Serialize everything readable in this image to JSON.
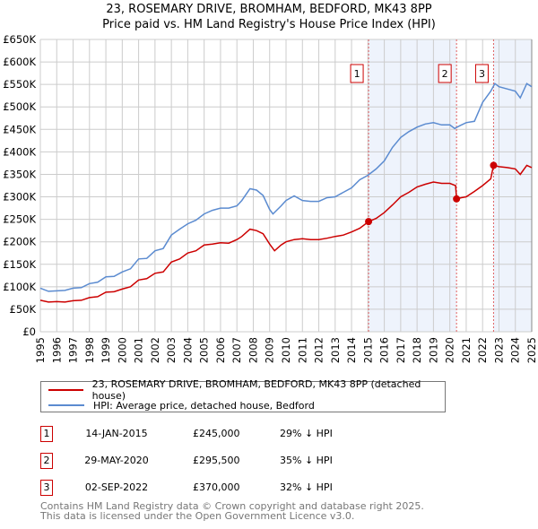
{
  "chart_data": {
    "type": "line",
    "title": "23, ROSEMARY DRIVE, BROMHAM, BEDFORD, MK43 8PP",
    "subtitle": "Price paid vs. HM Land Registry's House Price Index (HPI)",
    "xlabel": "",
    "ylabel": "",
    "xlim": [
      1995,
      2025
    ],
    "ylim": [
      0,
      650000
    ],
    "grid": true,
    "y_ticks": [
      0,
      50000,
      100000,
      150000,
      200000,
      250000,
      300000,
      350000,
      400000,
      450000,
      500000,
      550000,
      600000,
      650000
    ],
    "y_tick_labels": [
      "£0",
      "£50K",
      "£100K",
      "£150K",
      "£200K",
      "£250K",
      "£300K",
      "£350K",
      "£400K",
      "£450K",
      "£500K",
      "£550K",
      "£600K",
      "£650K"
    ],
    "x_tick_labels": [
      "1995",
      "1996",
      "1997",
      "1998",
      "1999",
      "2000",
      "2001",
      "2002",
      "2003",
      "2004",
      "2005",
      "2006",
      "2007",
      "2008",
      "2009",
      "2010",
      "2011",
      "2012",
      "2013",
      "2014",
      "2015",
      "2016",
      "2017",
      "2018",
      "2019",
      "2020",
      "2021",
      "2022",
      "2023",
      "2024",
      "2025"
    ],
    "legend_placement": "below",
    "series": [
      {
        "name": "23, ROSEMARY DRIVE, BROMHAM, BEDFORD, MK43 8PP (detached house)",
        "color": "#cc0000",
        "x": [
          1995,
          1995.5,
          1996,
          1996.5,
          1997,
          1997.5,
          1998,
          1998.5,
          1999,
          1999.5,
          2000,
          2000.5,
          2001,
          2001.5,
          2002,
          2002.5,
          2003,
          2003.5,
          2004,
          2004.5,
          2005,
          2005.5,
          2006,
          2006.5,
          2007,
          2007.3,
          2007.8,
          2008.2,
          2008.6,
          2009,
          2009.3,
          2009.7,
          2010,
          2010.5,
          2011,
          2011.5,
          2012,
          2012.5,
          2013,
          2013.5,
          2014,
          2014.5,
          2015.04,
          2015.5,
          2016,
          2016.5,
          2017,
          2017.5,
          2018,
          2018.5,
          2019,
          2019.5,
          2020,
          2020.35,
          2020.41,
          2020.7,
          2021,
          2021.5,
          2022,
          2022.5,
          2022.67,
          2023,
          2023.5,
          2024,
          2024.3,
          2024.7,
          2025
        ],
        "y": [
          70000,
          66000,
          67000,
          66000,
          69000,
          70000,
          76000,
          78000,
          88000,
          89000,
          95000,
          100000,
          115000,
          118000,
          130000,
          133000,
          155000,
          162000,
          175000,
          180000,
          193000,
          195000,
          198000,
          197000,
          205000,
          212000,
          228000,
          225000,
          218000,
          195000,
          180000,
          193000,
          200000,
          205000,
          207000,
          205000,
          205000,
          208000,
          212000,
          215000,
          222000,
          230000,
          245000,
          252000,
          265000,
          282000,
          300000,
          310000,
          322000,
          328000,
          333000,
          330000,
          330000,
          325000,
          295500,
          298000,
          300000,
          312000,
          325000,
          340000,
          370000,
          367000,
          365000,
          362000,
          350000,
          370000,
          365000
        ]
      },
      {
        "name": "HPI: Average price, detached house, Bedford",
        "color": "#5b8bd0",
        "x": [
          1995,
          1995.5,
          1996,
          1996.5,
          1997,
          1997.5,
          1998,
          1998.5,
          1999,
          1999.5,
          2000,
          2000.5,
          2001,
          2001.5,
          2002,
          2002.5,
          2003,
          2003.5,
          2004,
          2004.5,
          2005,
          2005.5,
          2006,
          2006.5,
          2007,
          2007.3,
          2007.8,
          2008.2,
          2008.6,
          2009,
          2009.2,
          2009.7,
          2010,
          2010.5,
          2011,
          2011.5,
          2012,
          2012.5,
          2013,
          2013.5,
          2014,
          2014.5,
          2015,
          2015.5,
          2016,
          2016.5,
          2017,
          2017.5,
          2018,
          2018.5,
          2019,
          2019.5,
          2020,
          2020.3,
          2020.6,
          2021,
          2021.5,
          2022,
          2022.5,
          2022.75,
          2023,
          2023.5,
          2024,
          2024.3,
          2024.7,
          2025
        ],
        "y": [
          97000,
          90000,
          91000,
          92000,
          97000,
          98000,
          107000,
          110000,
          122000,
          123000,
          133000,
          140000,
          162000,
          163000,
          180000,
          185000,
          215000,
          228000,
          240000,
          248000,
          262000,
          270000,
          275000,
          275000,
          280000,
          292000,
          318000,
          315000,
          303000,
          272000,
          262000,
          280000,
          292000,
          302000,
          292000,
          290000,
          290000,
          298000,
          300000,
          310000,
          320000,
          338000,
          348000,
          362000,
          380000,
          410000,
          432000,
          445000,
          455000,
          462000,
          465000,
          460000,
          460000,
          452000,
          458000,
          465000,
          468000,
          510000,
          535000,
          552000,
          545000,
          540000,
          535000,
          520000,
          552000,
          545000
        ]
      }
    ],
    "sales": [
      {
        "label": "1",
        "x": 2015.04,
        "y": 245000
      },
      {
        "label": "2",
        "x": 2020.41,
        "y": 295500
      },
      {
        "label": "3",
        "x": 2022.67,
        "y": 370000
      }
    ],
    "shaded_ranges": [
      [
        2015.04,
        2020.41
      ],
      [
        2022.67,
        2025
      ]
    ]
  },
  "legend": {
    "property": "23, ROSEMARY DRIVE, BROMHAM, BEDFORD, MK43 8PP (detached house)",
    "hpi": "HPI: Average price, detached house, Bedford"
  },
  "transactions": [
    {
      "num": "1",
      "date": "14-JAN-2015",
      "price": "£245,000",
      "pct": "29% ↓ HPI"
    },
    {
      "num": "2",
      "date": "29-MAY-2020",
      "price": "£295,500",
      "pct": "35% ↓ HPI"
    },
    {
      "num": "3",
      "date": "02-SEP-2022",
      "price": "£370,000",
      "pct": "32% ↓ HPI"
    }
  ],
  "footer": {
    "line1": "Contains HM Land Registry data © Crown copyright and database right 2025.",
    "line2": "This data is licensed under the Open Government Licence v3.0."
  }
}
